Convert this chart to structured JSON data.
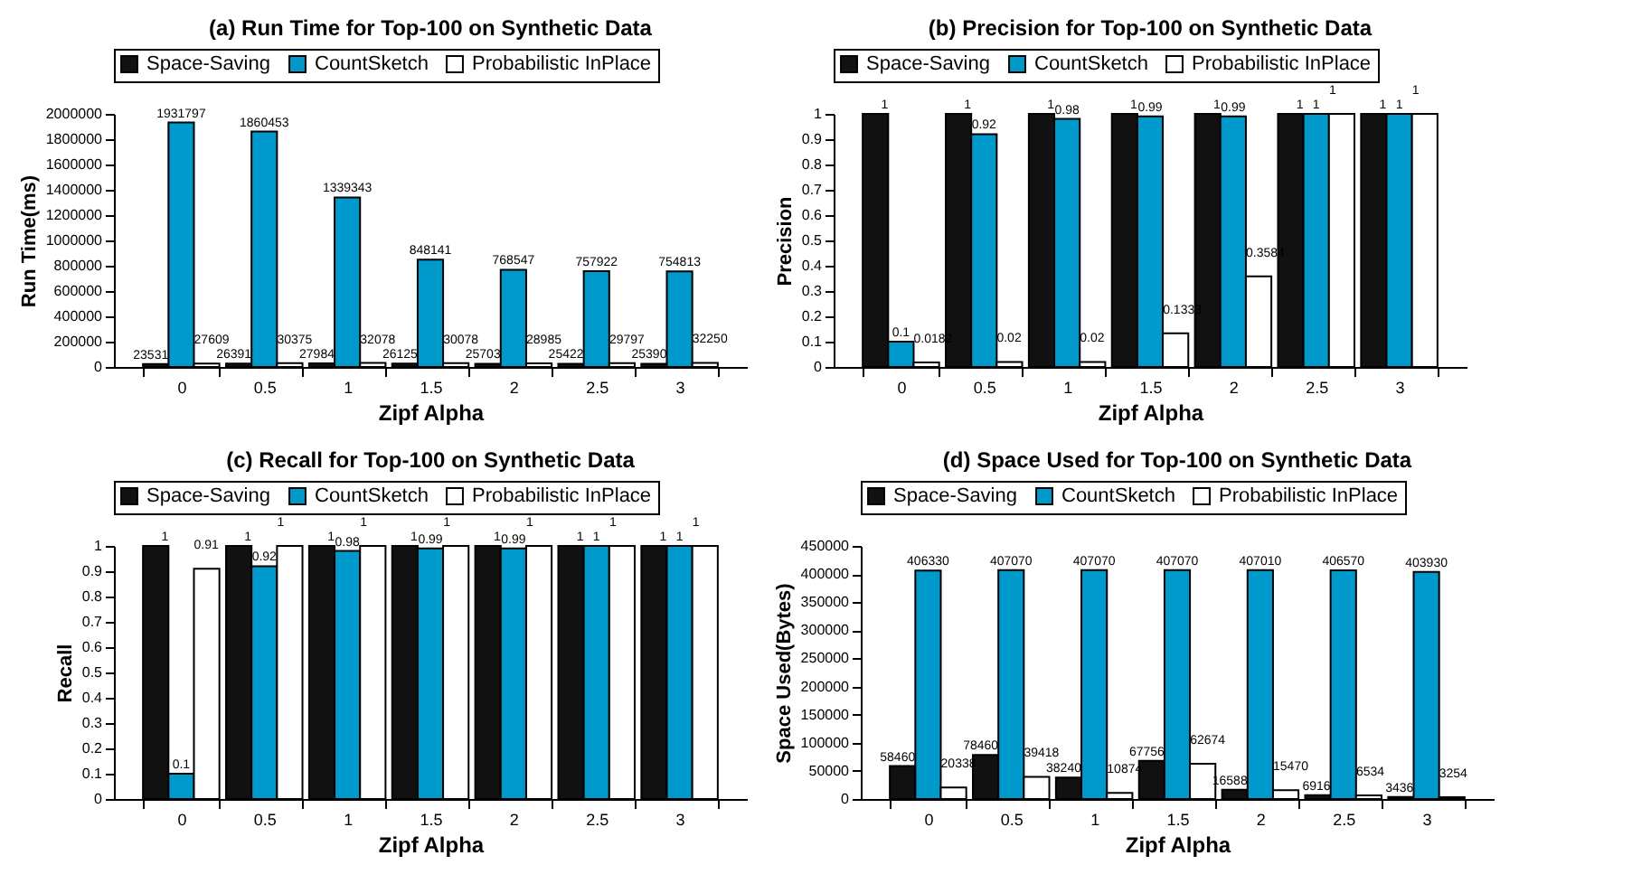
{
  "chart_data": [
    {
      "type": "bar",
      "title": "(a) Run Time for Top-100 on Synthetic Data",
      "xlabel": "Zipf Alpha",
      "ylabel": "Run Time(ms)",
      "categories": [
        "0",
        "0.5",
        "1",
        "1.5",
        "2",
        "2.5",
        "3"
      ],
      "series": [
        {
          "name": "Space-Saving",
          "color": "#111111",
          "values": [
            23531,
            26391,
            27984,
            26125,
            25703,
            25422,
            25390
          ]
        },
        {
          "name": "CountSketch",
          "color": "#0099cc",
          "values": [
            1931797,
            1860453,
            1339343,
            848141,
            768547,
            757922,
            754813
          ]
        },
        {
          "name": "Probabilistic InPlace",
          "color": "#ffffff",
          "values": [
            27609,
            30375,
            32078,
            30078,
            28985,
            29797,
            32250
          ]
        }
      ],
      "ylim": [
        0,
        2000000
      ],
      "yticks": [
        0,
        200000,
        400000,
        600000,
        800000,
        1000000,
        1200000,
        1400000,
        1600000,
        1800000,
        2000000
      ],
      "data_labels": true,
      "legend": "top",
      "grid": false
    },
    {
      "type": "bar",
      "title": "(b) Precision for Top-100 on Synthetic Data",
      "xlabel": "Zipf Alpha",
      "ylabel": "Precision",
      "categories": [
        "0",
        "0.5",
        "1",
        "1.5",
        "2",
        "2.5",
        "3"
      ],
      "series": [
        {
          "name": "Space-Saving",
          "color": "#111111",
          "values": [
            1,
            1,
            1,
            1,
            1,
            1,
            1
          ]
        },
        {
          "name": "CountSketch",
          "color": "#0099cc",
          "values": [
            0.1,
            0.92,
            0.98,
            0.99,
            0.99,
            1,
            1
          ]
        },
        {
          "name": "Probabilistic InPlace",
          "color": "#ffffff",
          "values": [
            0.0182,
            0.02,
            0.02,
            0.1333,
            0.3584,
            1,
            1
          ]
        }
      ],
      "ylim": [
        0,
        1
      ],
      "yticks": [
        0,
        0.1,
        0.2,
        0.3,
        0.4,
        0.5,
        0.6,
        0.7,
        0.8,
        0.9,
        1
      ],
      "data_labels": true,
      "legend": "top",
      "grid": false
    },
    {
      "type": "bar",
      "title": "(c) Recall for Top-100 on Synthetic Data",
      "xlabel": "Zipf Alpha",
      "ylabel": "Recall",
      "categories": [
        "0",
        "0.5",
        "1",
        "1.5",
        "2",
        "2.5",
        "3"
      ],
      "series": [
        {
          "name": "Space-Saving",
          "color": "#111111",
          "values": [
            1,
            1,
            1,
            1,
            1,
            1,
            1
          ]
        },
        {
          "name": "CountSketch",
          "color": "#0099cc",
          "values": [
            0.1,
            0.92,
            0.98,
            0.99,
            0.99,
            1,
            1
          ]
        },
        {
          "name": "Probabilistic InPlace",
          "color": "#ffffff",
          "values": [
            0.91,
            1,
            1,
            1,
            1,
            1,
            1
          ]
        }
      ],
      "ylim": [
        0,
        1
      ],
      "yticks": [
        0,
        0.1,
        0.2,
        0.3,
        0.4,
        0.5,
        0.6,
        0.7,
        0.8,
        0.9,
        1
      ],
      "data_labels": true,
      "legend": "top",
      "grid": false
    },
    {
      "type": "bar",
      "title": "(d) Space Used for Top-100 on Synthetic Data",
      "xlabel": "Zipf Alpha",
      "ylabel": "Space Used(Bytes)",
      "categories": [
        "0",
        "0.5",
        "1",
        "1.5",
        "2",
        "2.5",
        "3"
      ],
      "series": [
        {
          "name": "Space-Saving",
          "color": "#111111",
          "values": [
            58460,
            78460,
            38240,
            67756,
            16588,
            6916,
            3436
          ]
        },
        {
          "name": "CountSketch",
          "color": "#0099cc",
          "values": [
            406330,
            407070,
            407070,
            407070,
            407010,
            406570,
            403930
          ]
        },
        {
          "name": "Probabilistic InPlace",
          "color": "#ffffff",
          "values": [
            20338,
            39418,
            10874,
            62674,
            15470,
            6534,
            3254
          ]
        }
      ],
      "ylim": [
        0,
        450000
      ],
      "yticks": [
        0,
        50000,
        100000,
        150000,
        200000,
        250000,
        300000,
        350000,
        400000,
        450000
      ],
      "data_labels": true,
      "legend": "top",
      "grid": false
    }
  ]
}
